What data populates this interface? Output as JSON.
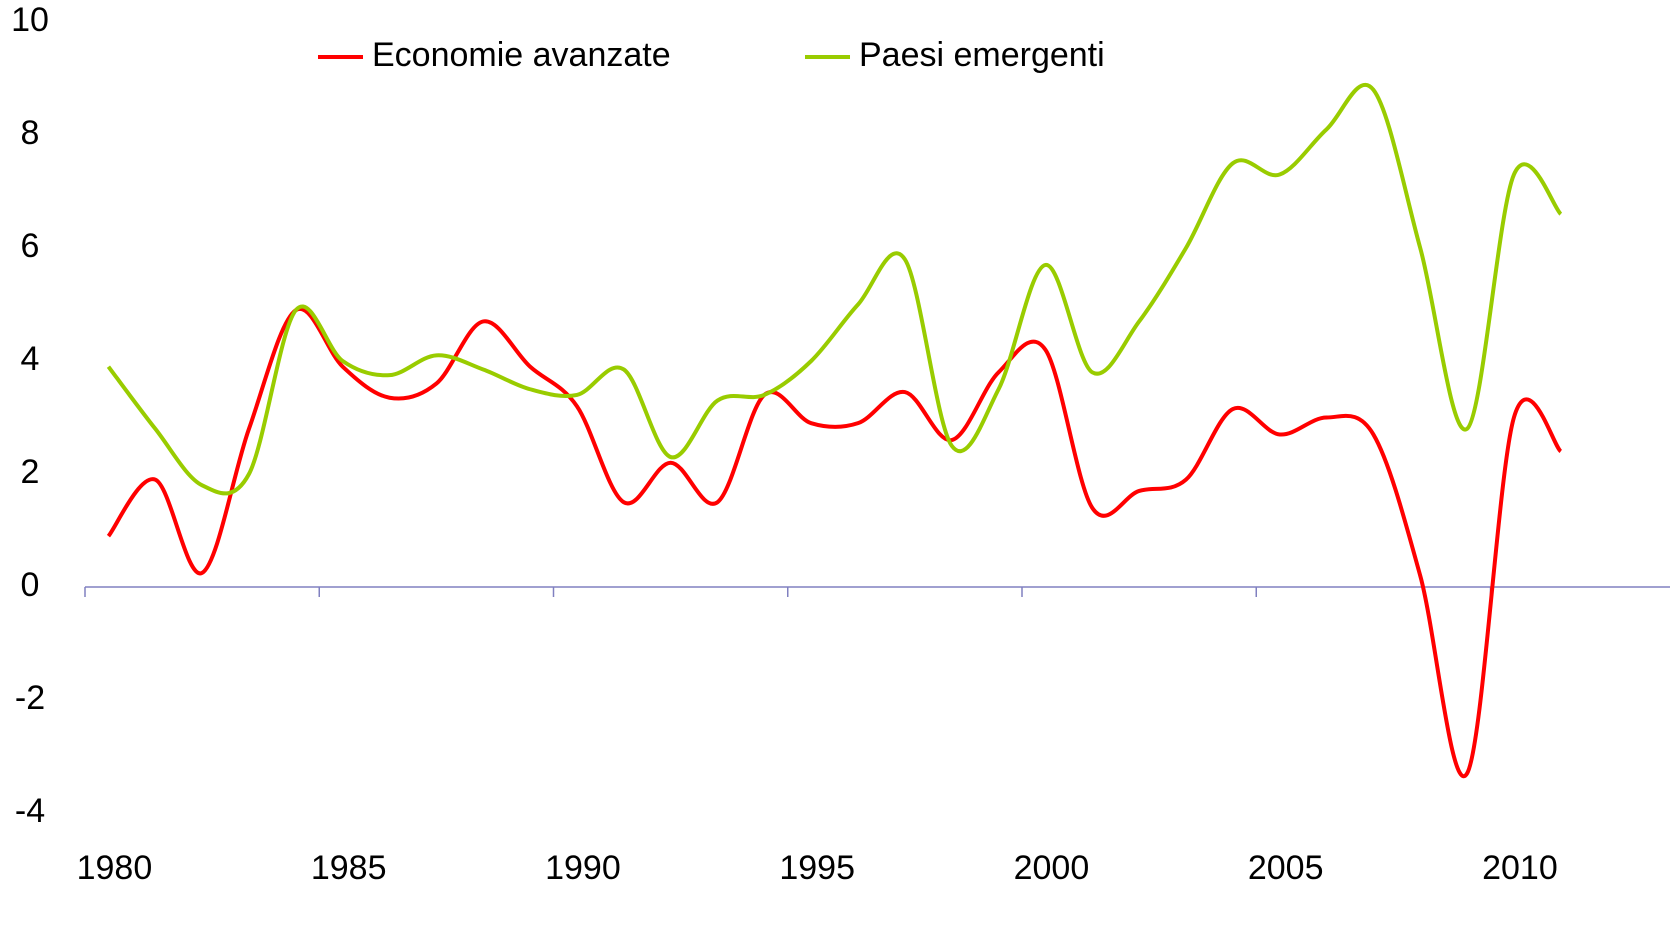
{
  "chart_data": {
    "type": "line",
    "categories": [
      "1980",
      null,
      null,
      null,
      null,
      "1985",
      null,
      null,
      null,
      null,
      "1990",
      null,
      null,
      null,
      null,
      "1995",
      null,
      null,
      null,
      null,
      "2000",
      null,
      null,
      null,
      null,
      "2005",
      null,
      null,
      null,
      null,
      "2010",
      null
    ],
    "series": [
      {
        "name": "Economie avanzate",
        "color": "#ff0000",
        "values": [
          0.9,
          1.9,
          0.25,
          2.8,
          4.9,
          3.9,
          3.35,
          3.6,
          4.7,
          3.9,
          3.2,
          1.5,
          2.2,
          1.5,
          3.4,
          2.9,
          2.9,
          3.45,
          2.6,
          3.8,
          4.2,
          1.4,
          1.7,
          1.9,
          3.15,
          2.7,
          3.0,
          2.7,
          0.2,
          -3.3,
          3.0,
          2.4
        ]
      },
      {
        "name": "Paesi emergenti",
        "color": "#99cc00",
        "values": [
          3.9,
          2.8,
          1.8,
          2.0,
          4.9,
          4.0,
          3.75,
          4.1,
          3.85,
          3.5,
          3.4,
          3.85,
          2.3,
          3.3,
          3.4,
          4.0,
          5.0,
          5.8,
          2.5,
          3.5,
          5.7,
          3.8,
          4.7,
          6.0,
          7.5,
          7.3,
          8.1,
          8.8,
          6.0,
          2.8,
          7.3,
          6.6
        ]
      }
    ],
    "ylim": [
      -4,
      10
    ],
    "yticks": [
      -4,
      -2,
      0,
      2,
      4,
      6,
      8,
      10
    ],
    "grid": false,
    "legend": "top",
    "axis_color": "#8080c0"
  }
}
